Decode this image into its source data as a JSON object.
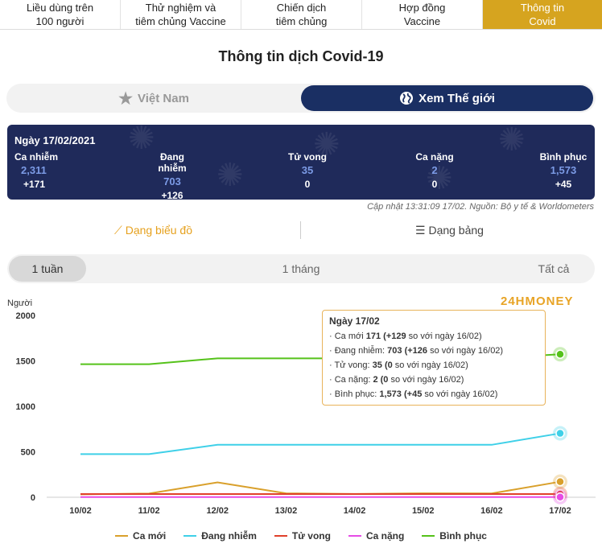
{
  "nav": {
    "tabs": [
      {
        "line1": "Liều dùng trên",
        "line2": "100 người"
      },
      {
        "line1": "Thử nghiệm và",
        "line2": "tiêm chủng Vaccine"
      },
      {
        "line1": "Chiến dịch",
        "line2": "tiêm chủng"
      },
      {
        "line1": "Hợp đồng",
        "line2": "Vaccine"
      },
      {
        "line1": "Thông tin",
        "line2": "Covid"
      }
    ]
  },
  "title": "Thông tin dịch Covid-19",
  "toggle": {
    "vietnam": "Việt Nam",
    "world": "Xem Thế giới"
  },
  "stats": {
    "date": "Ngày 17/02/2021",
    "items": [
      {
        "label": "Ca nhiễm",
        "value": "2,311",
        "change": "+171"
      },
      {
        "label": "Đang nhiễm",
        "value": "703",
        "change": "+126"
      },
      {
        "label": "Tử vong",
        "value": "35",
        "change": "0"
      },
      {
        "label": "Ca nặng",
        "value": "2",
        "change": "0"
      },
      {
        "label": "Bình phục",
        "value": "1,573",
        "change": "+45"
      }
    ]
  },
  "update_note": "Cập nhật 13:31:09 17/02. Nguồn: Bộ y tế & Worldometers",
  "view": {
    "chart": "Dạng biểu đồ",
    "table": "Dạng bảng"
  },
  "period": {
    "week": "1 tuần",
    "month": "1 tháng",
    "all": "Tất cả"
  },
  "watermark": "24HMONEY",
  "tooltip": {
    "title": "Ngày 17/02",
    "lines": [
      {
        "pre": "Ca mới ",
        "val": "171",
        "chg": "(+129",
        "post": " so với ngày 16/02)"
      },
      {
        "pre": "Đang nhiễm: ",
        "val": "703",
        "chg": "(+126",
        "post": " so với ngày 16/02)"
      },
      {
        "pre": "Tử vong: ",
        "val": "35",
        "chg": "(0",
        "post": " so với ngày 16/02)"
      },
      {
        "pre": "Ca nặng: ",
        "val": "2",
        "chg": "(0",
        "post": " so với ngày 16/02)"
      },
      {
        "pre": "Bình phục: ",
        "val": "1,573",
        "chg": "(+45",
        "post": " so với ngày 16/02)"
      }
    ]
  },
  "colors": {
    "accent": "#d6a41f",
    "navy": "#1f2a5a",
    "ca_moi": "#d9a02b",
    "dang_nhiem": "#3fd0e8",
    "tu_vong": "#e0402a",
    "ca_nang": "#e64ce6",
    "binh_phuc": "#55c21a"
  },
  "chart_data": {
    "type": "line",
    "ylabel": "Người",
    "ylim": [
      0,
      2000
    ],
    "yticks": [
      0,
      500,
      1000,
      1500,
      2000
    ],
    "categories": [
      "10/02",
      "11/02",
      "12/02",
      "13/02",
      "14/02",
      "15/02",
      "16/02",
      "17/02"
    ],
    "series": [
      {
        "name": "Ca mới",
        "color": "#d9a02b",
        "values": [
          32,
          41,
          164,
          43,
          36,
          43,
          42,
          171
        ]
      },
      {
        "name": "Đang nhiễm",
        "color": "#3fd0e8",
        "values": [
          475,
          475,
          577,
          577,
          577,
          577,
          577,
          703
        ]
      },
      {
        "name": "Tử vong",
        "color": "#e0402a",
        "values": [
          35,
          35,
          35,
          35,
          35,
          35,
          35,
          35
        ]
      },
      {
        "name": "Ca nặng",
        "color": "#e64ce6",
        "values": [
          2,
          2,
          2,
          2,
          2,
          2,
          2,
          2
        ]
      },
      {
        "name": "Bình phục",
        "color": "#55c21a",
        "values": [
          1463,
          1463,
          1528,
          1528,
          1528,
          1528,
          1528,
          1573
        ]
      }
    ],
    "grid": false,
    "legend": "bottom"
  }
}
